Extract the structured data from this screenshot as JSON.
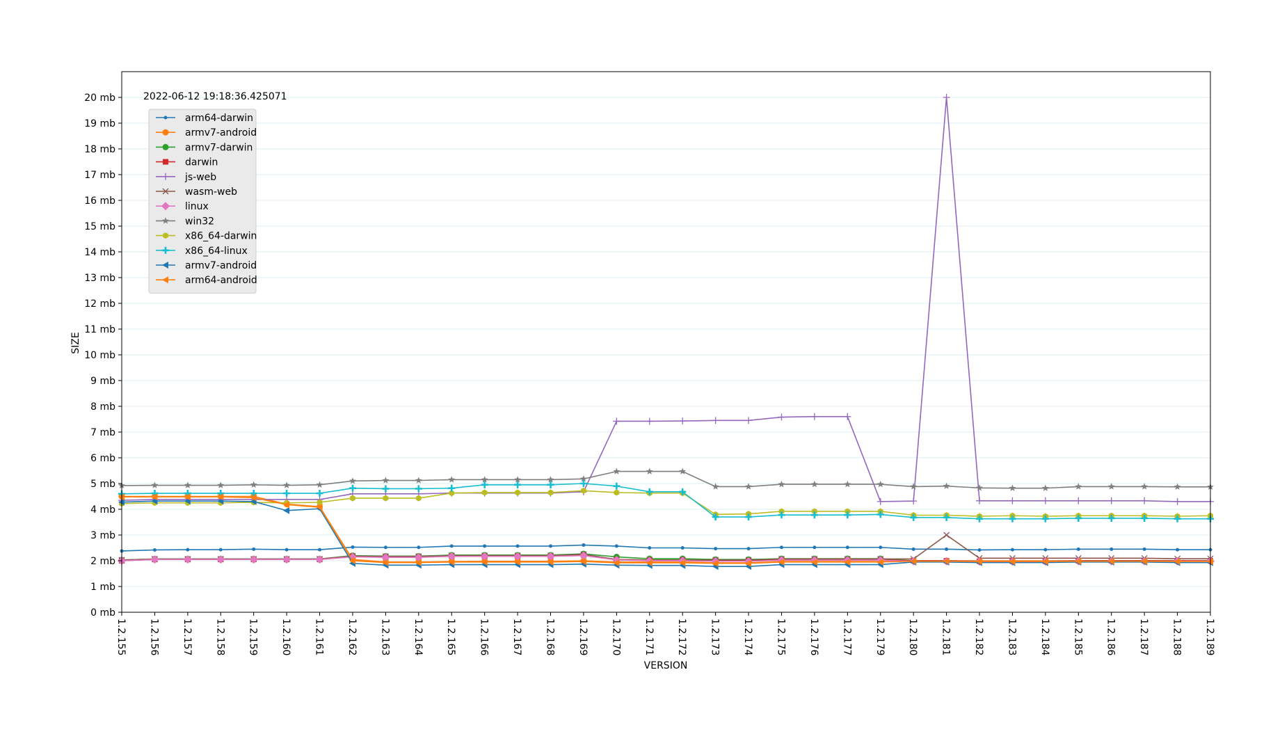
{
  "chart_data": {
    "type": "line",
    "annotation": "2022-06-12 19:18:36.425071",
    "xlabel": "VERSION",
    "ylabel": "SIZE",
    "ylim": [
      0,
      21
    ],
    "y_unit": "mb",
    "y_ticks": [
      0,
      1,
      2,
      3,
      4,
      5,
      6,
      7,
      8,
      9,
      10,
      11,
      12,
      13,
      14,
      15,
      16,
      17,
      18,
      19,
      20
    ],
    "grid": "horizontal",
    "legend_position": "upper-left",
    "categories": [
      "1.2.155",
      "1.2.156",
      "1.2.157",
      "1.2.158",
      "1.2.159",
      "1.2.160",
      "1.2.161",
      "1.2.162",
      "1.2.163",
      "1.2.164",
      "1.2.165",
      "1.2.166",
      "1.2.167",
      "1.2.168",
      "1.2.169",
      "1.2.170",
      "1.2.171",
      "1.2.172",
      "1.2.173",
      "1.2.174",
      "1.2.175",
      "1.2.176",
      "1.2.177",
      "1.2.179",
      "1.2.180",
      "1.2.181",
      "1.2.182",
      "1.2.183",
      "1.2.184",
      "1.2.185",
      "1.2.186",
      "1.2.187",
      "1.2.188",
      "1.2.189"
    ],
    "series": [
      {
        "name": "arm64-darwin",
        "color": "#1f77b4",
        "marker": "point",
        "values": [
          2.38,
          2.42,
          2.43,
          2.43,
          2.45,
          2.43,
          2.43,
          2.53,
          2.52,
          2.52,
          2.57,
          2.57,
          2.57,
          2.57,
          2.61,
          2.57,
          2.5,
          2.5,
          2.47,
          2.47,
          2.52,
          2.52,
          2.52,
          2.52,
          2.45,
          2.45,
          2.42,
          2.43,
          2.43,
          2.45,
          2.45,
          2.45,
          2.43,
          2.43
        ]
      },
      {
        "name": "armv7-android",
        "color": "#ff7f0e",
        "marker": "circle",
        "values": [
          4.5,
          4.5,
          4.5,
          4.5,
          4.5,
          4.2,
          4.1,
          2.05,
          1.95,
          1.95,
          1.97,
          1.98,
          1.98,
          1.98,
          2.0,
          1.95,
          1.95,
          1.95,
          1.92,
          1.92,
          1.97,
          1.97,
          1.97,
          1.97,
          2.0,
          2.0,
          2.0,
          2.0,
          2.0,
          2.0,
          2.0,
          2.0,
          2.0,
          2.0
        ]
      },
      {
        "name": "armv7-darwin",
        "color": "#2ca02c",
        "marker": "circle",
        "values": [
          2.03,
          2.07,
          2.07,
          2.07,
          2.07,
          2.07,
          2.07,
          2.2,
          2.18,
          2.18,
          2.22,
          2.22,
          2.22,
          2.22,
          2.27,
          2.15,
          2.08,
          2.08,
          2.05,
          2.05,
          2.08,
          2.08,
          2.08,
          2.08,
          2.0,
          2.0,
          1.98,
          1.98,
          1.98,
          2.0,
          2.0,
          2.0,
          2.0,
          2.0
        ]
      },
      {
        "name": "darwin",
        "color": "#d62728",
        "marker": "square",
        "values": [
          2.0,
          2.05,
          2.05,
          2.05,
          2.05,
          2.05,
          2.05,
          2.17,
          2.15,
          2.15,
          2.18,
          2.18,
          2.18,
          2.18,
          2.22,
          2.05,
          2.03,
          2.03,
          2.0,
          2.0,
          2.03,
          2.03,
          2.03,
          2.03,
          2.0,
          2.0,
          1.98,
          1.98,
          1.98,
          2.0,
          2.0,
          2.0,
          2.0,
          2.0
        ]
      },
      {
        "name": "js-web",
        "color": "#9467bd",
        "marker": "plus",
        "values": [
          4.35,
          4.38,
          4.38,
          4.38,
          4.38,
          4.38,
          4.38,
          4.6,
          4.6,
          4.6,
          4.63,
          4.63,
          4.63,
          4.63,
          4.68,
          7.42,
          7.42,
          7.43,
          7.45,
          7.45,
          7.58,
          7.6,
          7.6,
          4.3,
          4.32,
          20.0,
          4.33,
          4.33,
          4.33,
          4.33,
          4.33,
          4.33,
          4.3,
          4.3
        ]
      },
      {
        "name": "wasm-web",
        "color": "#8c564b",
        "marker": "x",
        "values": [
          2.03,
          2.07,
          2.07,
          2.07,
          2.07,
          2.07,
          2.07,
          2.18,
          2.17,
          2.17,
          2.2,
          2.2,
          2.2,
          2.2,
          2.25,
          2.05,
          2.03,
          2.03,
          2.03,
          2.03,
          2.07,
          2.07,
          2.07,
          2.07,
          2.07,
          3.0,
          2.1,
          2.1,
          2.1,
          2.1,
          2.1,
          2.1,
          2.08,
          2.08
        ]
      },
      {
        "name": "linux",
        "color": "#e377c2",
        "marker": "diamond",
        "values": [
          2.0,
          2.05,
          2.05,
          2.05,
          2.05,
          2.05,
          2.05,
          2.15,
          2.13,
          2.13,
          2.17,
          2.17,
          2.17,
          2.17,
          2.2,
          2.03,
          2.0,
          2.0,
          1.98,
          1.98,
          2.02,
          2.02,
          2.02,
          2.02,
          1.98,
          1.98,
          1.97,
          1.97,
          1.97,
          1.98,
          1.98,
          1.98,
          1.98,
          1.98
        ]
      },
      {
        "name": "win32",
        "color": "#7f7f7f",
        "marker": "star",
        "values": [
          4.92,
          4.93,
          4.93,
          4.93,
          4.95,
          4.93,
          4.95,
          5.1,
          5.12,
          5.12,
          5.15,
          5.15,
          5.15,
          5.15,
          5.18,
          5.47,
          5.47,
          5.47,
          4.88,
          4.88,
          4.97,
          4.97,
          4.97,
          4.97,
          4.88,
          4.9,
          4.83,
          4.82,
          4.82,
          4.88,
          4.88,
          4.88,
          4.87,
          4.87
        ]
      },
      {
        "name": "x86_64-darwin",
        "color": "#bcbd22",
        "marker": "hexagon",
        "values": [
          4.22,
          4.25,
          4.25,
          4.25,
          4.27,
          4.25,
          4.27,
          4.43,
          4.43,
          4.43,
          4.63,
          4.65,
          4.65,
          4.65,
          4.72,
          4.65,
          4.63,
          4.63,
          3.8,
          3.82,
          3.92,
          3.92,
          3.92,
          3.92,
          3.77,
          3.77,
          3.73,
          3.75,
          3.73,
          3.75,
          3.75,
          3.75,
          3.73,
          3.75
        ]
      },
      {
        "name": "x86_64-linux",
        "color": "#17becf",
        "marker": "thin-plus",
        "values": [
          4.6,
          4.62,
          4.62,
          4.62,
          4.62,
          4.62,
          4.62,
          4.82,
          4.8,
          4.8,
          4.82,
          4.95,
          4.95,
          4.95,
          5.0,
          4.9,
          4.68,
          4.68,
          3.7,
          3.7,
          3.78,
          3.78,
          3.78,
          3.8,
          3.68,
          3.68,
          3.63,
          3.63,
          3.63,
          3.65,
          3.65,
          3.65,
          3.63,
          3.63
        ]
      },
      {
        "name": "armv7-android",
        "color": "#1f77b4",
        "marker": "triangle-left",
        "values": [
          4.28,
          4.32,
          4.32,
          4.32,
          4.3,
          3.95,
          4.02,
          1.9,
          1.83,
          1.83,
          1.85,
          1.85,
          1.85,
          1.85,
          1.87,
          1.83,
          1.82,
          1.82,
          1.78,
          1.78,
          1.85,
          1.85,
          1.85,
          1.85,
          1.95,
          1.95,
          1.93,
          1.93,
          1.93,
          1.95,
          1.95,
          1.95,
          1.93,
          1.93
        ]
      },
      {
        "name": "arm64-android",
        "color": "#ff7f0e",
        "marker": "triangle-left",
        "values": [
          4.48,
          4.48,
          4.48,
          4.48,
          4.45,
          4.18,
          4.08,
          2.0,
          1.93,
          1.93,
          1.95,
          1.95,
          1.95,
          1.95,
          1.97,
          1.92,
          1.92,
          1.92,
          1.9,
          1.9,
          1.95,
          1.95,
          1.95,
          1.95,
          1.98,
          1.98,
          1.97,
          1.97,
          1.97,
          1.98,
          1.98,
          1.98,
          1.97,
          1.97
        ]
      }
    ]
  }
}
